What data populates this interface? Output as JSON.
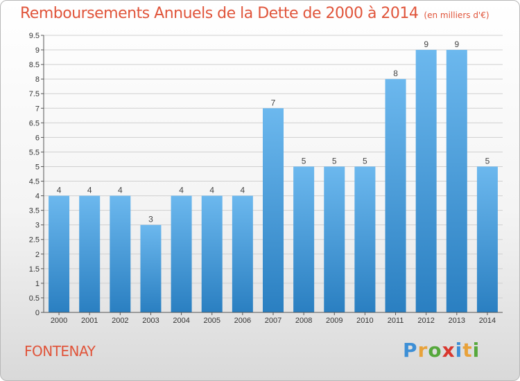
{
  "title": "Remboursements Annuels de la Dette de 2000 à 2014",
  "subtitle": "(en milliers d'€)",
  "commune": "FONTENAY",
  "logo": {
    "letters": [
      "P",
      "r",
      "o",
      "x",
      "i",
      "t",
      "i"
    ],
    "colors": [
      "#3d8fd6",
      "#e8a23a",
      "#56a83c",
      "#d9372e",
      "#3d8fd6",
      "#e8a23a",
      "#56a83c"
    ]
  },
  "colors": {
    "bar_light": "#6cb8ee",
    "bar_dark": "#2a7fc1",
    "axis": "#555555",
    "grid": "#cfcfcf"
  },
  "chart_data": {
    "type": "bar",
    "categories": [
      "2000",
      "2001",
      "2002",
      "2003",
      "2004",
      "2005",
      "2006",
      "2007",
      "2008",
      "2009",
      "2010",
      "2011",
      "2012",
      "2013",
      "2014"
    ],
    "values": [
      4,
      4,
      4,
      3,
      4,
      4,
      4,
      7,
      5,
      5,
      5,
      8,
      9,
      9,
      5
    ],
    "data_labels": [
      "4",
      "4",
      "4",
      "3",
      "4",
      "4",
      "4",
      "7",
      "5",
      "5",
      "5",
      "8",
      "9",
      "9",
      "5"
    ],
    "yticks": [
      "0",
      "0.5",
      "1",
      "1.5",
      "2",
      "2.5",
      "3",
      "3.5",
      "4",
      "4.5",
      "5",
      "5.5",
      "6",
      "6.5",
      "7",
      "7.5",
      "8",
      "8.5",
      "9",
      "9.5"
    ],
    "ylim": [
      0,
      9.5
    ],
    "title": "Remboursements Annuels de la Dette de 2000 à 2014",
    "xlabel": "",
    "ylabel": "",
    "grid": true
  }
}
